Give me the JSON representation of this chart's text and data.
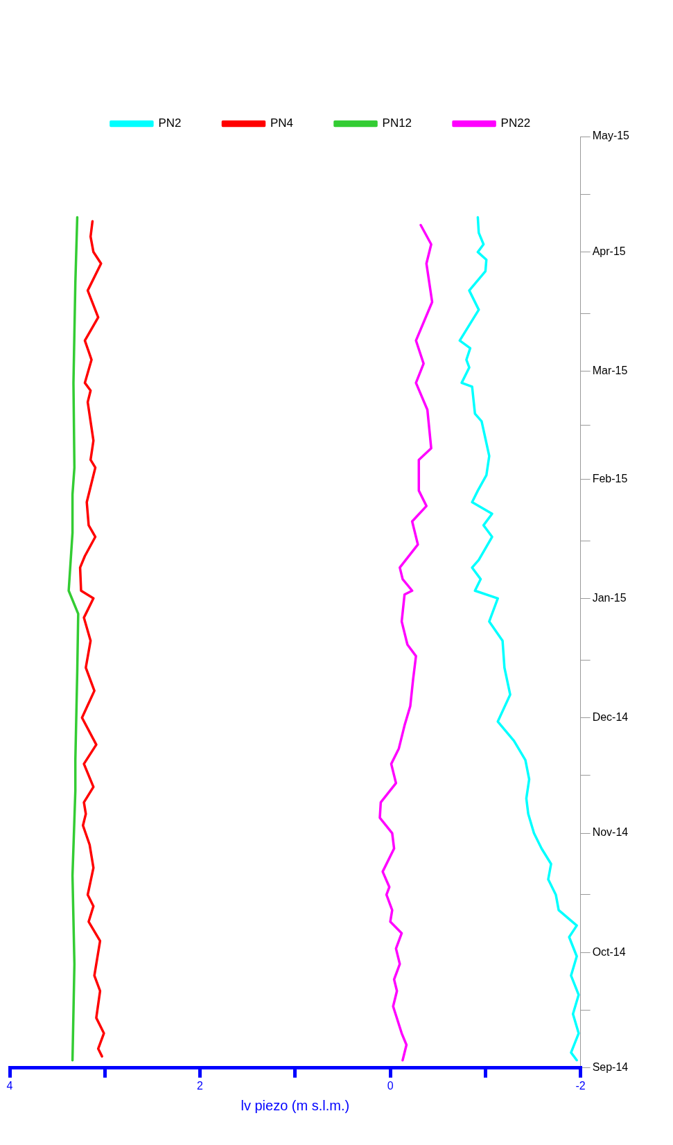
{
  "chart_data": {
    "type": "line",
    "orientation": "horizontal",
    "xlabel": "lv piezo (m s.l.m.)",
    "legend": "top",
    "line_style": "solid",
    "ylim": [
      "2014-09-01",
      "2015-05-01"
    ],
    "yticks": [
      {
        "value": "2014-09-01",
        "label": "Sep-14"
      },
      {
        "value": "2014-09-16",
        "label": null
      },
      {
        "value": "2014-10-01",
        "label": "Oct-14"
      },
      {
        "value": "2014-10-16",
        "label": null
      },
      {
        "value": "2014-11-01",
        "label": "Nov-14"
      },
      {
        "value": "2014-11-16",
        "label": null
      },
      {
        "value": "2014-12-01",
        "label": "Dec-14"
      },
      {
        "value": "2014-12-16",
        "label": null
      },
      {
        "value": "2015-01-01",
        "label": "Jan-15"
      },
      {
        "value": "2015-01-16",
        "label": null
      },
      {
        "value": "2015-02-01",
        "label": "Feb-15"
      },
      {
        "value": "2015-02-15",
        "label": null
      },
      {
        "value": "2015-03-01",
        "label": "Mar-15"
      },
      {
        "value": "2015-03-16",
        "label": null
      },
      {
        "value": "2015-04-01",
        "label": "Apr-15"
      },
      {
        "value": "2015-04-16",
        "label": null
      },
      {
        "value": "2015-05-01",
        "label": "May-15"
      }
    ],
    "xlim": [
      4,
      -2
    ],
    "xticks": [
      4,
      {
        "value": 3,
        "label": null
      },
      2,
      {
        "value": 1,
        "label": null
      },
      0,
      {
        "value": -1,
        "label": null
      },
      -2
    ],
    "series": [
      {
        "name": "PN2",
        "color": "#00ffff",
        "x": [
          "2014-09-03",
          "2014-09-05",
          "2014-09-10",
          "2014-09-15",
          "2014-09-20",
          "2014-09-25",
          "2014-09-30",
          "2014-10-05",
          "2014-10-08",
          "2014-10-12",
          "2014-10-16",
          "2014-10-20",
          "2014-10-24",
          "2014-10-28",
          "2014-11-01",
          "2014-11-06",
          "2014-11-10",
          "2014-11-15",
          "2014-11-20",
          "2014-11-25",
          "2014-11-30",
          "2014-12-07",
          "2014-12-14",
          "2014-12-21",
          "2014-12-26",
          "2015-01-01",
          "2015-01-03",
          "2015-01-06",
          "2015-01-09",
          "2015-01-11",
          "2015-01-17",
          "2015-01-20",
          "2015-01-23",
          "2015-01-26",
          "2015-01-29",
          "2015-02-02",
          "2015-02-07",
          "2015-02-16",
          "2015-02-18",
          "2015-02-25",
          "2015-02-26",
          "2015-03-02",
          "2015-03-04",
          "2015-03-07",
          "2015-03-09",
          "2015-03-17",
          "2015-03-22",
          "2015-03-27",
          "2015-03-30",
          "2015-04-01",
          "2015-04-03",
          "2015-04-06",
          "2015-04-10"
        ],
        "values": [
          -1.96,
          -1.9,
          -1.98,
          -1.92,
          -1.98,
          -1.9,
          -1.96,
          -1.88,
          -1.96,
          -1.77,
          -1.74,
          -1.66,
          -1.69,
          -1.59,
          -1.51,
          -1.45,
          -1.43,
          -1.46,
          -1.42,
          -1.3,
          -1.13,
          -1.26,
          -1.2,
          -1.18,
          -1.04,
          -1.13,
          -0.89,
          -0.95,
          -0.86,
          -0.93,
          -1.07,
          -0.98,
          -1.07,
          -0.86,
          -0.92,
          -1.01,
          -1.04,
          -0.96,
          -0.89,
          -0.86,
          -0.75,
          -0.83,
          -0.8,
          -0.84,
          -0.73,
          -0.93,
          -0.83,
          -1.0,
          -1.01,
          -0.92,
          -0.98,
          -0.93,
          -0.92
        ]
      },
      {
        "name": "PN4",
        "color": "#ff0000",
        "x": [
          "2014-09-04",
          "2014-09-06",
          "2014-09-10",
          "2014-09-14",
          "2014-09-21",
          "2014-09-25",
          "2014-10-04",
          "2014-10-09",
          "2014-10-13",
          "2014-10-16",
          "2014-10-23",
          "2014-10-29",
          "2014-11-03",
          "2014-11-06",
          "2014-11-09",
          "2014-11-13",
          "2014-11-19",
          "2014-11-24",
          "2014-12-01",
          "2014-12-08",
          "2014-12-14",
          "2014-12-21",
          "2014-12-27",
          "2015-01-01",
          "2015-01-03",
          "2015-01-09",
          "2015-01-12",
          "2015-01-17",
          "2015-01-20",
          "2015-01-26",
          "2015-02-04",
          "2015-02-06",
          "2015-02-11",
          "2015-02-21",
          "2015-02-24",
          "2015-02-26",
          "2015-03-04",
          "2015-03-09",
          "2015-03-15",
          "2015-03-22",
          "2015-03-29",
          "2015-04-01",
          "2015-04-05",
          "2015-04-09"
        ],
        "values": [
          3.03,
          3.07,
          3.01,
          3.09,
          3.05,
          3.11,
          3.05,
          3.17,
          3.12,
          3.18,
          3.12,
          3.16,
          3.23,
          3.2,
          3.22,
          3.12,
          3.22,
          3.09,
          3.24,
          3.11,
          3.2,
          3.15,
          3.22,
          3.12,
          3.25,
          3.26,
          3.21,
          3.1,
          3.17,
          3.19,
          3.1,
          3.15,
          3.12,
          3.18,
          3.15,
          3.21,
          3.14,
          3.21,
          3.07,
          3.18,
          3.04,
          3.12,
          3.15,
          3.13
        ]
      },
      {
        "name": "PN12",
        "color": "#33cc33",
        "x": [
          "2014-09-03",
          "2014-09-28",
          "2014-10-21",
          "2014-11-12",
          "2014-11-20",
          "2014-12-13",
          "2014-12-28",
          "2015-01-03",
          "2015-01-18",
          "2015-01-28",
          "2015-02-04",
          "2015-02-26",
          "2015-03-24",
          "2015-04-10"
        ],
        "values": [
          3.34,
          3.32,
          3.34,
          3.31,
          3.31,
          3.29,
          3.28,
          3.38,
          3.34,
          3.34,
          3.32,
          3.33,
          3.31,
          3.29
        ]
      },
      {
        "name": "PN22",
        "color": "#ff00ff",
        "x": [
          "2014-09-03",
          "2014-09-07",
          "2014-09-10",
          "2014-09-17",
          "2014-09-21",
          "2014-09-24",
          "2014-09-28",
          "2014-10-02",
          "2014-10-06",
          "2014-10-09",
          "2014-10-12",
          "2014-10-16",
          "2014-10-18",
          "2014-10-22",
          "2014-10-28",
          "2014-11-01",
          "2014-11-05",
          "2014-11-09",
          "2014-11-14",
          "2014-11-19",
          "2014-11-23",
          "2014-11-29",
          "2014-12-04",
          "2014-12-11",
          "2014-12-17",
          "2014-12-20",
          "2014-12-26",
          "2015-01-02",
          "2015-01-03",
          "2015-01-06",
          "2015-01-09",
          "2015-01-15",
          "2015-01-21",
          "2015-01-25",
          "2015-01-29",
          "2015-02-06",
          "2015-02-09",
          "2015-02-19",
          "2015-02-26",
          "2015-03-03",
          "2015-03-09",
          "2015-03-19",
          "2015-03-29",
          "2015-04-03",
          "2015-04-08"
        ],
        "values": [
          -0.13,
          -0.17,
          -0.12,
          -0.03,
          -0.07,
          -0.04,
          -0.1,
          -0.06,
          -0.12,
          0.0,
          -0.02,
          0.04,
          0.01,
          0.08,
          -0.04,
          -0.02,
          0.11,
          0.1,
          -0.06,
          -0.01,
          -0.09,
          -0.15,
          -0.21,
          -0.24,
          -0.27,
          -0.18,
          -0.12,
          -0.15,
          -0.23,
          -0.13,
          -0.1,
          -0.29,
          -0.23,
          -0.38,
          -0.3,
          -0.3,
          -0.43,
          -0.39,
          -0.27,
          -0.35,
          -0.27,
          -0.44,
          -0.38,
          -0.43,
          -0.32
        ]
      }
    ]
  }
}
